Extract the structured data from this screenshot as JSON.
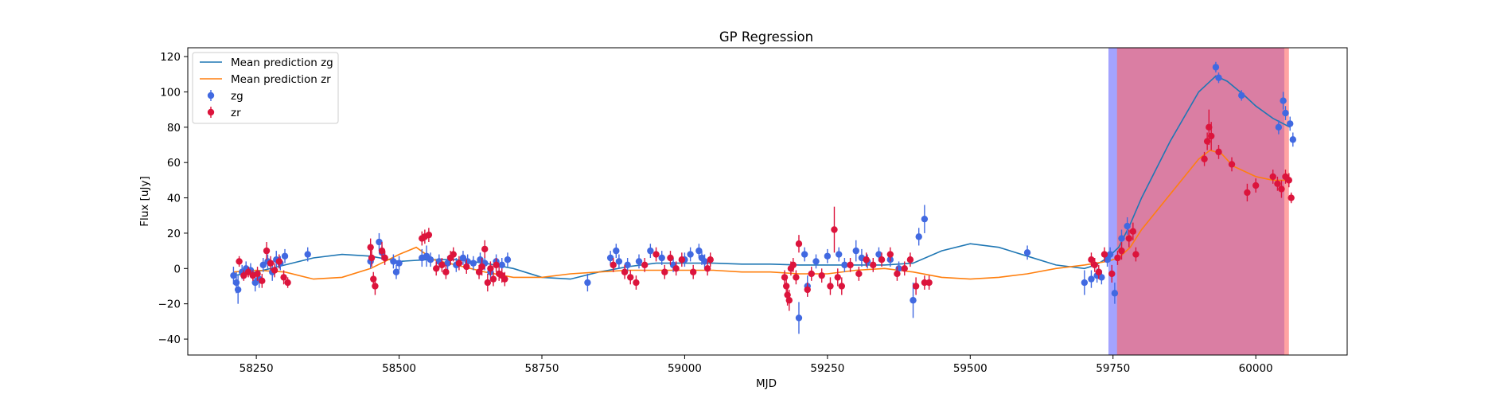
{
  "chart_data": {
    "type": "scatter",
    "title": "GP Regression",
    "xlabel": "MJD",
    "ylabel": "Flux [uJy]",
    "xlim": [
      58130,
      60160
    ],
    "ylim": [
      -49,
      125
    ],
    "xticks": [
      58250,
      58500,
      58750,
      59000,
      59250,
      59500,
      59750,
      60000
    ],
    "yticks": [
      -40,
      -20,
      0,
      20,
      40,
      60,
      80,
      100,
      120
    ],
    "grid": false,
    "legend_position": "top-left",
    "colors": {
      "zg": "#4169e1",
      "zr": "#dc143c",
      "mean_zg": "#1f77b4",
      "mean_zr": "#ff7f0e",
      "band_zg": "#6666ff",
      "band_zr": "#ff6666"
    },
    "shaded_regions": [
      {
        "series": "zg",
        "x_start": 59742,
        "x_end": 60050
      },
      {
        "series": "zr",
        "x_start": 59757,
        "x_end": 60058
      }
    ],
    "series": [
      {
        "name": "Mean prediction zg",
        "kind": "line",
        "color_key": "mean_zg",
        "x": [
          58210,
          58250,
          58300,
          58350,
          58400,
          58450,
          58500,
          58550,
          58600,
          58650,
          58700,
          58750,
          58800,
          58850,
          58900,
          58950,
          59000,
          59050,
          59100,
          59150,
          59200,
          59250,
          59300,
          59350,
          59400,
          59450,
          59500,
          59550,
          59600,
          59650,
          59700,
          59720,
          59740,
          59760,
          59780,
          59800,
          59850,
          59900,
          59930,
          59950,
          59980,
          60000,
          60030,
          60060
        ],
        "y": [
          -4,
          -2,
          2,
          6,
          8,
          7,
          4,
          5,
          5,
          3,
          0,
          -5,
          -6,
          -2,
          1,
          3,
          3,
          3,
          2.5,
          2.5,
          2,
          2,
          2,
          2,
          3,
          10,
          14,
          12,
          7,
          2,
          0,
          2,
          6,
          12,
          25,
          40,
          72,
          100,
          109,
          106,
          98,
          92,
          85,
          80
        ]
      },
      {
        "name": "Mean prediction zr",
        "kind": "line",
        "color_key": "mean_zr",
        "x": [
          58210,
          58250,
          58300,
          58350,
          58400,
          58450,
          58500,
          58530,
          58560,
          58600,
          58650,
          58700,
          58750,
          58800,
          58850,
          58900,
          58950,
          59000,
          59050,
          59100,
          59150,
          59200,
          59250,
          59300,
          59350,
          59400,
          59450,
          59500,
          59550,
          59600,
          59650,
          59700,
          59720,
          59740,
          59760,
          59780,
          59800,
          59850,
          59900,
          59920,
          59940,
          59960,
          60000,
          60030,
          60060
        ],
        "y": [
          -2,
          -1,
          -2,
          -6,
          -5,
          0,
          8,
          12,
          5,
          2,
          -2,
          -5,
          -5,
          -3,
          -2,
          -1,
          -1,
          -1,
          -1,
          -2,
          -2,
          -3,
          -3,
          -1,
          0,
          -2,
          -5,
          -6,
          -5,
          -3,
          0,
          2,
          3,
          4,
          6,
          12,
          22,
          42,
          62,
          67,
          65,
          58,
          52,
          50,
          50
        ]
      },
      {
        "name": "zg",
        "kind": "errorbar",
        "color_key": "zg",
        "x": [
          58210,
          58215,
          58218,
          58225,
          58232,
          58240,
          58248,
          58255,
          58262,
          58270,
          58278,
          58285,
          58292,
          58300,
          58340,
          58450,
          58465,
          58470,
          58490,
          58495,
          58500,
          58540,
          58548,
          58555,
          58570,
          58585,
          58600,
          58612,
          58620,
          58630,
          58642,
          58650,
          58660,
          58670,
          58680,
          58690,
          58830,
          58870,
          58880,
          58885,
          58900,
          58920,
          58940,
          58960,
          58980,
          59000,
          59010,
          59025,
          59030,
          59035,
          59200,
          59210,
          59215,
          59230,
          59250,
          59270,
          59280,
          59300,
          59310,
          59320,
          59340,
          59360,
          59375,
          59400,
          59410,
          59420,
          59600,
          59700,
          59712,
          59722,
          59730,
          59740,
          59745,
          59753,
          59765,
          59775,
          59930,
          59935,
          59975,
          60040,
          60048,
          60052,
          60060,
          60065
        ],
        "y": [
          -4,
          -8,
          -12,
          -2,
          0,
          -1,
          -8,
          -6,
          2,
          4,
          -2,
          5,
          3,
          7,
          8,
          4,
          15,
          9,
          4,
          -2,
          3,
          6,
          7,
          5,
          4,
          3,
          2,
          6,
          4,
          3,
          5,
          3,
          -2,
          4,
          2,
          5,
          -8,
          6,
          10,
          4,
          2,
          4,
          10,
          6,
          2,
          5,
          8,
          10,
          6,
          4,
          -28,
          8,
          -10,
          4,
          7,
          8,
          2,
          10,
          6,
          4,
          8,
          5,
          0,
          -18,
          18,
          28,
          9,
          -8,
          -6,
          -4,
          -5,
          5,
          8,
          -14,
          17,
          24,
          114,
          108,
          98,
          80,
          95,
          88,
          82,
          73
        ],
        "yerr": [
          5,
          6,
          8,
          4,
          4,
          4,
          5,
          5,
          4,
          4,
          5,
          5,
          4,
          4,
          4,
          4,
          5,
          4,
          4,
          4,
          4,
          5,
          6,
          4,
          4,
          4,
          4,
          4,
          4,
          4,
          4,
          4,
          5,
          4,
          4,
          4,
          5,
          4,
          4,
          4,
          4,
          4,
          4,
          4,
          4,
          4,
          4,
          4,
          4,
          4,
          9,
          4,
          6,
          4,
          4,
          4,
          4,
          6,
          5,
          4,
          4,
          4,
          4,
          10,
          5,
          8,
          4,
          7,
          5,
          4,
          4,
          4,
          4,
          6,
          5,
          5,
          3,
          3,
          3,
          4,
          5,
          4,
          4,
          4
        ]
      },
      {
        "name": "zr",
        "kind": "errorbar",
        "color_key": "zr",
        "x": [
          58220,
          58228,
          58236,
          58244,
          58252,
          58260,
          58268,
          58275,
          58282,
          58290,
          58298,
          58305,
          58450,
          58452,
          58455,
          58458,
          58470,
          58475,
          58540,
          58545,
          58552,
          58565,
          58575,
          58582,
          58590,
          58595,
          58605,
          58618,
          58640,
          58645,
          58650,
          58655,
          58660,
          58665,
          58670,
          58675,
          58680,
          58685,
          58875,
          58895,
          58905,
          58915,
          58930,
          58950,
          58965,
          58975,
          58985,
          58995,
          59015,
          59040,
          59045,
          59175,
          59178,
          59180,
          59183,
          59186,
          59190,
          59195,
          59200,
          59215,
          59222,
          59240,
          59255,
          59262,
          59268,
          59275,
          59290,
          59305,
          59318,
          59330,
          59345,
          59360,
          59372,
          59385,
          59395,
          59405,
          59420,
          59428,
          59712,
          59718,
          59725,
          59735,
          59748,
          59758,
          59765,
          59778,
          59785,
          59790,
          59910,
          59915,
          59918,
          59922,
          59935,
          59958,
          59985,
          60000,
          60030,
          60038,
          60045,
          60052,
          60058,
          60062
        ],
        "y": [
          4,
          -4,
          -2,
          -4,
          -3,
          -7,
          10,
          3,
          -1,
          4,
          -5,
          -8,
          12,
          6,
          -6,
          -10,
          10,
          6,
          17,
          18,
          19,
          0,
          2,
          -2,
          6,
          8,
          3,
          1,
          -2,
          1,
          11,
          -8,
          0,
          -6,
          2,
          -3,
          -4,
          -6,
          2,
          -2,
          -5,
          -8,
          2,
          8,
          -2,
          6,
          0,
          5,
          -2,
          0,
          5,
          -5,
          -10,
          -15,
          -18,
          0,
          2,
          -5,
          14,
          -12,
          -3,
          -4,
          -10,
          22,
          -5,
          -10,
          2,
          -3,
          5,
          2,
          5,
          8,
          -3,
          0,
          5,
          -10,
          -8,
          -8,
          5,
          2,
          -2,
          8,
          -3,
          6,
          10,
          17,
          21,
          8,
          62,
          72,
          80,
          75,
          66,
          59,
          43,
          47,
          52,
          48,
          45,
          52,
          50,
          40
        ],
        "yerr": [
          3,
          3,
          3,
          3,
          4,
          4,
          5,
          4,
          4,
          4,
          4,
          3,
          5,
          5,
          4,
          5,
          5,
          4,
          4,
          4,
          4,
          4,
          4,
          4,
          4,
          4,
          4,
          4,
          4,
          5,
          5,
          5,
          4,
          4,
          4,
          4,
          4,
          4,
          4,
          4,
          4,
          4,
          4,
          4,
          4,
          4,
          4,
          4,
          4,
          4,
          4,
          4,
          5,
          6,
          6,
          4,
          4,
          4,
          5,
          4,
          4,
          4,
          5,
          13,
          5,
          5,
          4,
          4,
          4,
          4,
          4,
          4,
          4,
          4,
          4,
          5,
          4,
          4,
          4,
          4,
          4,
          4,
          5,
          4,
          5,
          5,
          5,
          4,
          4,
          5,
          10,
          8,
          4,
          4,
          5,
          4,
          4,
          4,
          5,
          4,
          4,
          3
        ]
      }
    ],
    "legend": [
      {
        "label": "Mean prediction zg",
        "marker": "line",
        "color_key": "mean_zg"
      },
      {
        "label": "Mean prediction zr",
        "marker": "line",
        "color_key": "mean_zr"
      },
      {
        "label": "zg",
        "marker": "errorbar",
        "color_key": "zg"
      },
      {
        "label": "zr",
        "marker": "errorbar",
        "color_key": "zr"
      }
    ]
  }
}
